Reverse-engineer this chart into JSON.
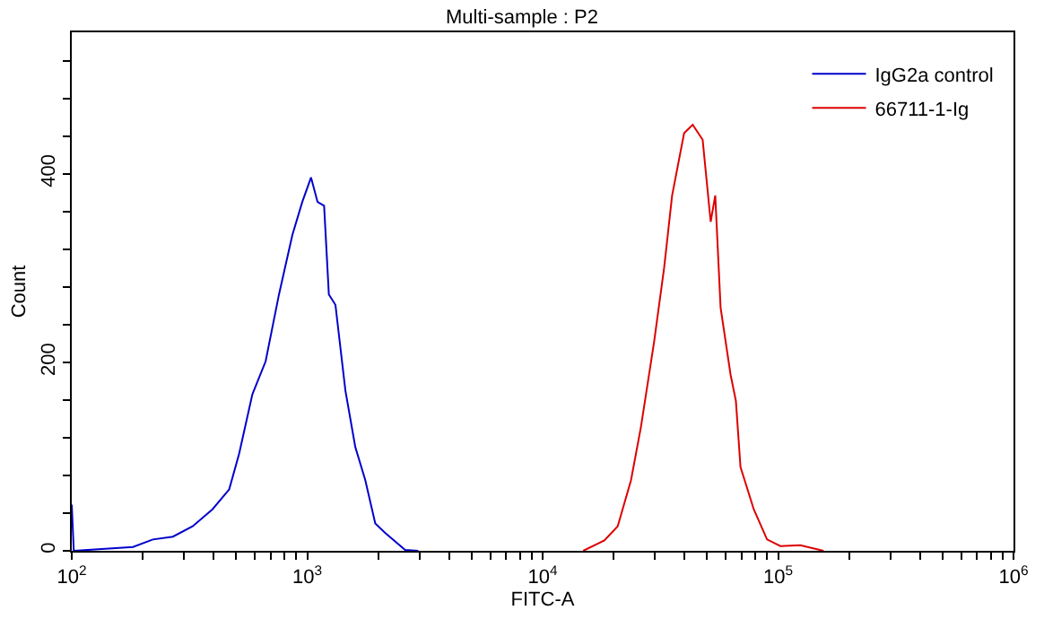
{
  "chart_data": {
    "type": "line",
    "title": "Multi-sample : P2",
    "xlabel": "FITC-A",
    "ylabel": "Count",
    "log": "x",
    "xlim": [
      100,
      1000000
    ],
    "ylim": [
      0,
      550
    ],
    "xticks": [
      {
        "value": 100,
        "label": "10$^{2}$"
      },
      {
        "value": 200,
        "label": null
      },
      {
        "value": 300,
        "label": null
      },
      {
        "value": 400,
        "label": null
      },
      {
        "value": 500,
        "label": null
      },
      {
        "value": 600,
        "label": null
      },
      {
        "value": 700,
        "label": null
      },
      {
        "value": 800,
        "label": null
      },
      {
        "value": 900,
        "label": null
      },
      {
        "value": 1000,
        "label": "10$^{3}$"
      },
      {
        "value": 2000,
        "label": null
      },
      {
        "value": 3000,
        "label": null
      },
      {
        "value": 4000,
        "label": null
      },
      {
        "value": 5000,
        "label": null
      },
      {
        "value": 6000,
        "label": null
      },
      {
        "value": 7000,
        "label": null
      },
      {
        "value": 8000,
        "label": null
      },
      {
        "value": 9000,
        "label": null
      },
      {
        "value": 10000,
        "label": "10$^{4}$"
      },
      {
        "value": 20000,
        "label": null
      },
      {
        "value": 30000,
        "label": null
      },
      {
        "value": 40000,
        "label": null
      },
      {
        "value": 50000,
        "label": null
      },
      {
        "value": 60000,
        "label": null
      },
      {
        "value": 70000,
        "label": null
      },
      {
        "value": 80000,
        "label": null
      },
      {
        "value": 90000,
        "label": null
      },
      {
        "value": 100000,
        "label": "10$^{5}$"
      },
      {
        "value": 200000,
        "label": null
      },
      {
        "value": 300000,
        "label": null
      },
      {
        "value": 400000,
        "label": null
      },
      {
        "value": 500000,
        "label": null
      },
      {
        "value": 600000,
        "label": null
      },
      {
        "value": 700000,
        "label": null
      },
      {
        "value": 800000,
        "label": null
      },
      {
        "value": 900000,
        "label": null
      },
      {
        "value": 1000000,
        "label": "10$^{6}$"
      }
    ],
    "yticks": [
      0,
      {
        "value": 40,
        "label": null
      },
      {
        "value": 80,
        "label": null
      },
      {
        "value": 120,
        "label": null
      },
      {
        "value": 160,
        "label": null
      },
      200,
      {
        "value": 240,
        "label": null
      },
      {
        "value": 280,
        "label": null
      },
      {
        "value": 320,
        "label": null
      },
      {
        "value": 360,
        "label": null
      },
      400,
      {
        "value": 440,
        "label": null
      },
      {
        "value": 480,
        "label": null
      },
      {
        "value": 520,
        "label": null
      }
    ],
    "grid": false,
    "legend": "top right",
    "marker": "none",
    "line_style": "solid",
    "series": [
      {
        "name": "IgG2a control",
        "color": "#0000cc",
        "x": [
          100,
          102,
          182,
          221,
          269,
          326,
          396,
          466,
          514,
          585,
          666,
          759,
          865,
          953,
          1038,
          1107,
          1180,
          1236,
          1318,
          1453,
          1601,
          1765,
          1946,
          2143,
          2606,
          2965
        ],
        "values": [
          49,
          0,
          4,
          12,
          15,
          26,
          44,
          65,
          103,
          166,
          201,
          272,
          335,
          370,
          396,
          370,
          366,
          272,
          261,
          170,
          110,
          75,
          29,
          19,
          1,
          0
        ]
      },
      {
        "name": "66711-1-Ig",
        "color": "#dd0000",
        "x": [
          14870,
          18290,
          20830,
          23740,
          26140,
          29770,
          32810,
          35480,
          39890,
          43390,
          47830,
          51730,
          54100,
          57000,
          62830,
          66200,
          69240,
          78850,
          89800,
          102300,
          124200,
          156000
        ],
        "values": [
          0,
          11,
          26,
          75,
          131,
          222,
          300,
          377,
          443,
          452,
          436,
          349,
          377,
          258,
          187,
          159,
          89,
          44,
          12,
          5,
          6,
          0
        ]
      }
    ]
  }
}
